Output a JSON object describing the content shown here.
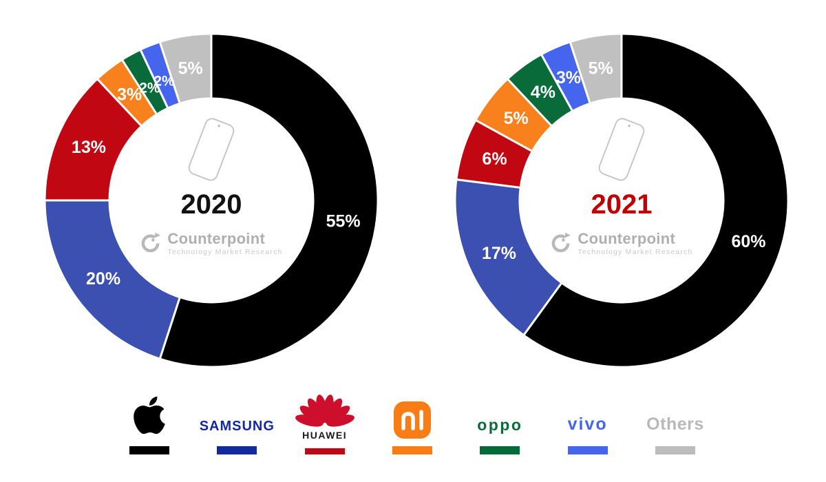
{
  "background": "#ffffff",
  "watermark": {
    "brand": "Counterpoint",
    "subtitle": "Technology Market Research"
  },
  "chart_data": [
    {
      "type": "donut",
      "year": "2020",
      "year_color": "#111111",
      "start_angle_deg": 0,
      "direction": "clockwise",
      "categories": [
        "Apple",
        "Samsung",
        "Huawei",
        "Xiaomi",
        "OPPO",
        "vivo",
        "Others"
      ],
      "values": [
        55,
        20,
        13,
        3,
        2,
        2,
        5
      ],
      "labels": [
        "55%",
        "20%",
        "13%",
        "3%",
        "2%",
        "2%",
        "5%"
      ],
      "colors": [
        "#000000",
        "#3C50B1",
        "#C00712",
        "#F9811D",
        "#0A6B3A",
        "#4565EE",
        "#C0C0C0"
      ],
      "label_color": "#ffffff"
    },
    {
      "type": "donut",
      "year": "2021",
      "year_color": "#C00000",
      "start_angle_deg": 0,
      "direction": "clockwise",
      "categories": [
        "Apple",
        "Samsung",
        "Huawei",
        "Xiaomi",
        "OPPO",
        "vivo",
        "Others"
      ],
      "values": [
        60,
        17,
        6,
        5,
        4,
        3,
        5
      ],
      "labels": [
        "60%",
        "17%",
        "6%",
        "5%",
        "4%",
        "3%",
        "5%"
      ],
      "colors": [
        "#000000",
        "#3C50B1",
        "#C00712",
        "#F9811D",
        "#0A6B3A",
        "#4565EE",
        "#C0C0C0"
      ],
      "label_color": "#ffffff"
    }
  ],
  "legend": {
    "items": [
      {
        "brand": "apple",
        "label": "",
        "bar_color": "#000000"
      },
      {
        "brand": "samsung",
        "label": "SAMSUNG",
        "bar_color": "#1428A0",
        "text_color": "#1428A0"
      },
      {
        "brand": "huawei",
        "label": "HUAWEI",
        "bar_color": "#C00712",
        "text_color": "#1A1A1A",
        "petal_color": "#CE0E2D"
      },
      {
        "brand": "xiaomi",
        "label": "mi",
        "bar_color": "#F97C14",
        "logo_bg": "#F97C14"
      },
      {
        "brand": "oppo",
        "label": "oppo",
        "bar_color": "#046A38",
        "text_color": "#0B6B3C"
      },
      {
        "brand": "vivo",
        "label": "vivo",
        "bar_color": "#4565EE",
        "text_color": "#4565EE"
      },
      {
        "brand": "others",
        "label": "Others",
        "bar_color": "#BDBDBD",
        "text_color": "#B9B9B9"
      }
    ]
  }
}
